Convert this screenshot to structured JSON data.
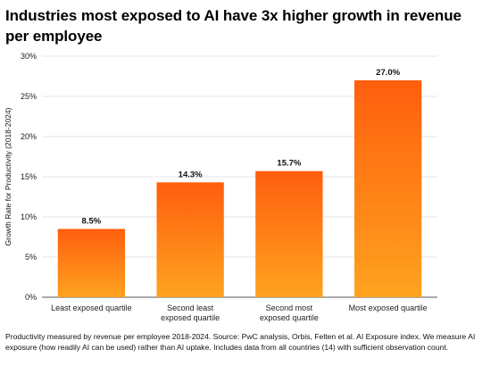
{
  "chart_data": {
    "type": "bar",
    "title": "Industries most exposed to AI have 3x higher growth in revenue per employee",
    "ylabel": "Growth Rate for Productivity (2018-2024)",
    "xlabel": "",
    "categories": [
      [
        "Least exposed quartile"
      ],
      [
        "Second least",
        "exposed quartile"
      ],
      [
        "Second most",
        "exposed quartile"
      ],
      [
        "Most exposed quartile"
      ]
    ],
    "values": [
      8.5,
      14.3,
      15.7,
      27.0
    ],
    "value_labels": [
      "8.5%",
      "14.3%",
      "15.7%",
      "27.0%"
    ],
    "ylim": [
      0,
      30
    ],
    "yticks": [
      0,
      5,
      10,
      15,
      20,
      25,
      30
    ],
    "ytick_labels": [
      "0%",
      "5%",
      "10%",
      "15%",
      "20%",
      "25%",
      "30%"
    ],
    "grid": true,
    "colors": {
      "bar_top": "#ff5e0e",
      "bar_bottom": "#ffa31f",
      "grid": "#dddddd",
      "axis": "#555555"
    }
  },
  "footnote": "Productivity measured by revenue per employee 2018-2024. Source: PwC analysis, Orbis, Felten et al. AI Exposure index. We measure AI exposure (how readily AI can be used) rather than AI uptake. Includes data from all countries (14) with sufficient observation count."
}
